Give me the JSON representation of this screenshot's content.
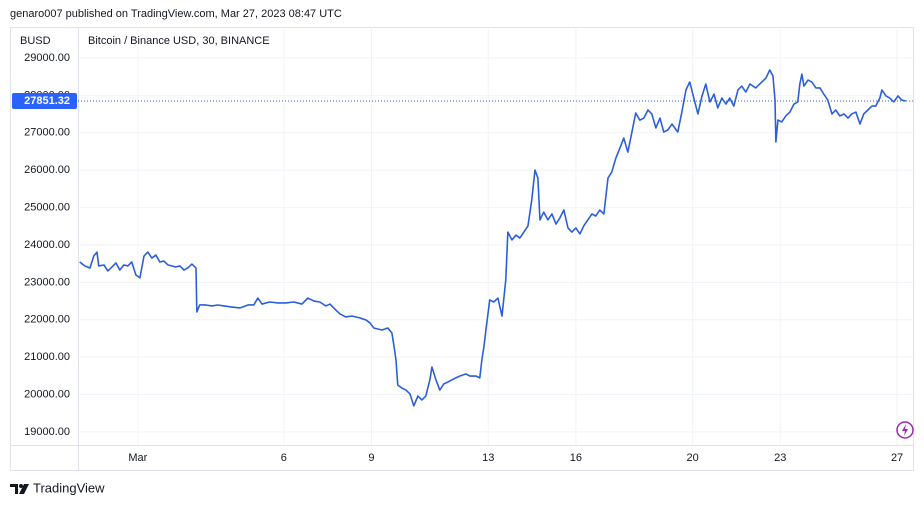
{
  "header": "genaro007 published on TradingView.com, Mar 27, 2023 08:47 UTC",
  "brand": "TradingView",
  "chart_data": {
    "type": "line",
    "title": "Bitcoin / Binance USD, 30, BINANCE",
    "y_label": "BUSD",
    "color": "#2b5fd9",
    "grid": true,
    "last_price": 27851.32,
    "xlim": [
      -1.05,
      27.58
    ],
    "xticks": [
      {
        "value": 1,
        "label": "Mar"
      },
      6,
      9,
      13,
      16,
      20,
      23,
      27
    ],
    "ylim": [
      18650,
      29830
    ],
    "yticks": [
      {
        "value": 19000,
        "label": "19000.00"
      },
      {
        "value": 20000,
        "label": "20000.00"
      },
      {
        "value": 21000,
        "label": "21000.00"
      },
      {
        "value": 22000,
        "label": "22000.00"
      },
      {
        "value": 23000,
        "label": "23000.00"
      },
      {
        "value": 24000,
        "label": "24000.00"
      },
      {
        "value": 25000,
        "label": "25000.00"
      },
      {
        "value": 26000,
        "label": "26000.00"
      },
      {
        "value": 27000,
        "label": "27000.00"
      },
      {
        "value": 28000,
        "label": "28000.00"
      },
      {
        "value": 29000,
        "label": "29000.00"
      }
    ],
    "x": [
      -0.99,
      -0.82,
      -0.64,
      -0.51,
      -0.4,
      -0.34,
      -0.16,
      -0.03,
      0.11,
      0.25,
      0.38,
      0.52,
      0.66,
      0.79,
      0.93,
      1.07,
      1.21,
      1.34,
      1.48,
      1.62,
      1.75,
      1.89,
      2.03,
      2.16,
      2.3,
      2.44,
      2.58,
      2.71,
      2.85,
      2.99,
      3.02,
      3.12,
      3.33,
      3.53,
      3.74,
      3.95,
      4.22,
      4.49,
      4.77,
      4.97,
      5.11,
      5.25,
      5.52,
      5.79,
      6.07,
      6.34,
      6.62,
      6.82,
      7.03,
      7.23,
      7.44,
      7.58,
      7.78,
      7.92,
      8.12,
      8.33,
      8.6,
      8.81,
      8.95,
      9.08,
      9.36,
      9.56,
      9.7,
      9.77,
      9.84,
      9.9,
      10.04,
      10.18,
      10.32,
      10.45,
      10.59,
      10.73,
      10.86,
      11.0,
      11.07,
      11.21,
      11.34,
      11.48,
      11.62,
      11.75,
      11.89,
      12.03,
      12.23,
      12.37,
      12.58,
      12.71,
      12.78,
      12.85,
      12.92,
      13.05,
      13.19,
      13.33,
      13.47,
      13.6,
      13.67,
      13.81,
      13.95,
      14.08,
      14.22,
      14.36,
      14.49,
      14.6,
      14.7,
      14.77,
      14.9,
      15.04,
      15.18,
      15.32,
      15.45,
      15.59,
      15.73,
      15.86,
      16.0,
      16.14,
      16.27,
      16.41,
      16.55,
      16.68,
      16.82,
      16.96,
      17.1,
      17.23,
      17.37,
      17.51,
      17.64,
      17.78,
      17.92,
      18.05,
      18.19,
      18.33,
      18.47,
      18.6,
      18.74,
      18.88,
      19.01,
      19.15,
      19.29,
      19.49,
      19.63,
      19.77,
      19.9,
      20.04,
      20.18,
      20.32,
      20.45,
      20.59,
      20.73,
      20.86,
      21.0,
      21.14,
      21.27,
      21.41,
      21.55,
      21.68,
      21.82,
      21.96,
      22.16,
      22.37,
      22.51,
      22.64,
      22.75,
      22.82,
      22.85,
      22.92,
      23.05,
      23.19,
      23.33,
      23.47,
      23.6,
      23.67,
      23.74,
      23.81,
      23.95,
      24.08,
      24.22,
      24.36,
      24.49,
      24.63,
      24.77,
      24.9,
      25.04,
      25.18,
      25.32,
      25.45,
      25.59,
      25.73,
      25.86,
      26.0,
      26.14,
      26.27,
      26.41,
      26.48,
      26.62,
      26.75,
      26.89,
      27.03,
      27.16,
      27.3
    ],
    "values": [
      23545,
      23440,
      23385,
      23705,
      23810,
      23440,
      23465,
      23305,
      23410,
      23520,
      23330,
      23465,
      23440,
      23545,
      23200,
      23120,
      23705,
      23810,
      23650,
      23730,
      23545,
      23570,
      23465,
      23440,
      23410,
      23440,
      23330,
      23385,
      23490,
      23385,
      22210,
      22395,
      22395,
      22370,
      22395,
      22370,
      22340,
      22315,
      22395,
      22395,
      22580,
      22420,
      22475,
      22450,
      22450,
      22475,
      22420,
      22580,
      22500,
      22475,
      22370,
      22420,
      22260,
      22155,
      22075,
      22100,
      22050,
      21995,
      21915,
      21780,
      21725,
      21780,
      21645,
      21300,
      20925,
      20255,
      20175,
      20120,
      20015,
      19695,
      19960,
      19855,
      19960,
      20390,
      20735,
      20390,
      20120,
      20285,
      20335,
      20390,
      20445,
      20495,
      20550,
      20495,
      20495,
      20445,
      20925,
      21270,
      21725,
      22530,
      22475,
      22580,
      22100,
      23065,
      24345,
      24135,
      24265,
      24185,
      24345,
      24510,
      25205,
      26005,
      25790,
      24670,
      24880,
      24670,
      24830,
      24560,
      24720,
      24935,
      24455,
      24345,
      24455,
      24295,
      24510,
      24670,
      24830,
      24775,
      24935,
      24830,
      25790,
      25950,
      26325,
      26595,
      26860,
      26485,
      27020,
      27530,
      27340,
      27395,
      27610,
      27505,
      27130,
      27395,
      27020,
      27075,
      27235,
      27020,
      27555,
      28145,
      28360,
      27930,
      27505,
      27985,
      28305,
      27825,
      28035,
      27665,
      27930,
      27770,
      27930,
      27715,
      28145,
      28250,
      28090,
      28305,
      28200,
      28360,
      28465,
      28680,
      28520,
      27875,
      26755,
      27340,
      27290,
      27450,
      27555,
      27770,
      27825,
      28305,
      28570,
      28250,
      28410,
      28360,
      28200,
      28200,
      28035,
      27875,
      27505,
      27610,
      27450,
      27505,
      27395,
      27505,
      27555,
      27235,
      27505,
      27610,
      27715,
      27715,
      27930,
      28145,
      27985,
      27930,
      27825,
      27985,
      27875,
      27850
    ]
  }
}
